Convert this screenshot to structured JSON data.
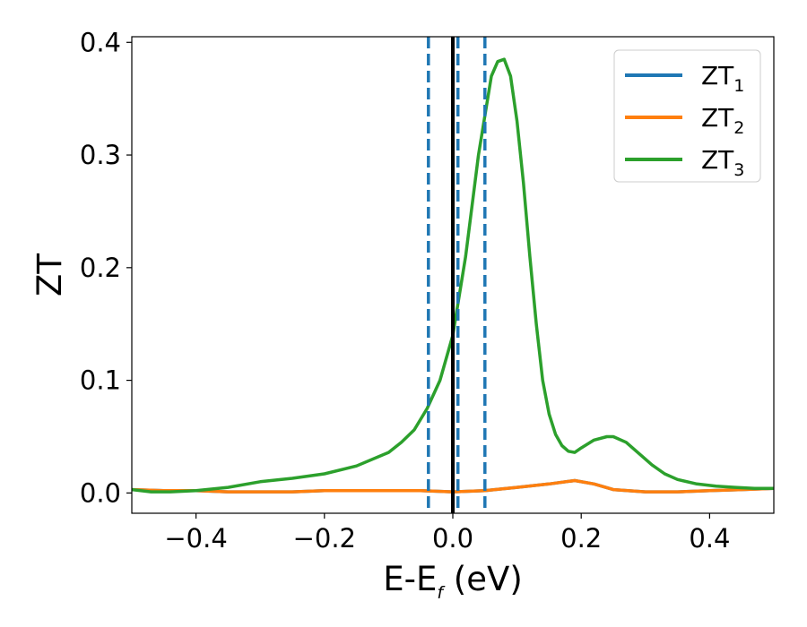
{
  "chart_data": {
    "type": "line",
    "xlabel": {
      "main": "E-E",
      "sub": "f",
      "suffix": " (eV)"
    },
    "ylabel": "ZT",
    "xlim": [
      -0.5,
      0.5
    ],
    "ylim": [
      -0.018,
      0.405
    ],
    "xticks": [
      {
        "value": -0.4,
        "label": "−0.4"
      },
      {
        "value": -0.2,
        "label": "−0.2"
      },
      {
        "value": 0.0,
        "label": "0.0"
      },
      {
        "value": 0.2,
        "label": "0.2"
      },
      {
        "value": 0.4,
        "label": "0.4"
      }
    ],
    "yticks": [
      {
        "value": 0.0,
        "label": "0.0"
      },
      {
        "value": 0.1,
        "label": "0.1"
      },
      {
        "value": 0.2,
        "label": "0.2"
      },
      {
        "value": 0.3,
        "label": "0.3"
      },
      {
        "value": 0.4,
        "label": "0.4"
      }
    ],
    "grid": false,
    "legend_position": "top-right",
    "series": [
      {
        "name": "ZT",
        "name_sub": "1",
        "color": "#1f77b4",
        "x": [
          -0.5,
          -0.45,
          -0.4,
          -0.35,
          -0.3,
          -0.25,
          -0.2,
          -0.15,
          -0.1,
          -0.05,
          0.0,
          0.05,
          0.1,
          0.15,
          0.19,
          0.22,
          0.25,
          0.3,
          0.35,
          0.4,
          0.45,
          0.5
        ],
        "y": [
          0.003,
          0.002,
          0.002,
          0.001,
          0.001,
          0.001,
          0.002,
          0.002,
          0.002,
          0.002,
          0.001,
          0.002,
          0.005,
          0.008,
          0.011,
          0.008,
          0.003,
          0.001,
          0.001,
          0.002,
          0.003,
          0.004
        ]
      },
      {
        "name": "ZT",
        "name_sub": "2",
        "color": "#ff7f0e",
        "x": [
          -0.5,
          -0.45,
          -0.4,
          -0.35,
          -0.3,
          -0.25,
          -0.2,
          -0.15,
          -0.1,
          -0.05,
          0.0,
          0.05,
          0.1,
          0.15,
          0.19,
          0.22,
          0.25,
          0.3,
          0.35,
          0.4,
          0.45,
          0.5
        ],
        "y": [
          0.003,
          0.002,
          0.002,
          0.001,
          0.001,
          0.001,
          0.002,
          0.002,
          0.002,
          0.002,
          0.001,
          0.002,
          0.005,
          0.008,
          0.011,
          0.008,
          0.003,
          0.001,
          0.001,
          0.002,
          0.003,
          0.004
        ]
      },
      {
        "name": "ZT",
        "name_sub": "3",
        "color": "#2ca02c",
        "x": [
          -0.5,
          -0.47,
          -0.44,
          -0.4,
          -0.35,
          -0.3,
          -0.25,
          -0.2,
          -0.15,
          -0.1,
          -0.08,
          -0.06,
          -0.04,
          -0.02,
          0.0,
          0.02,
          0.04,
          0.06,
          0.07,
          0.08,
          0.09,
          0.1,
          0.11,
          0.12,
          0.13,
          0.14,
          0.15,
          0.16,
          0.17,
          0.18,
          0.19,
          0.2,
          0.22,
          0.24,
          0.25,
          0.27,
          0.29,
          0.31,
          0.33,
          0.35,
          0.38,
          0.41,
          0.44,
          0.47,
          0.5
        ],
        "y": [
          0.003,
          0.001,
          0.001,
          0.002,
          0.005,
          0.01,
          0.013,
          0.017,
          0.024,
          0.036,
          0.045,
          0.056,
          0.075,
          0.1,
          0.14,
          0.21,
          0.3,
          0.37,
          0.383,
          0.385,
          0.37,
          0.33,
          0.275,
          0.21,
          0.15,
          0.1,
          0.07,
          0.052,
          0.042,
          0.037,
          0.036,
          0.04,
          0.047,
          0.05,
          0.05,
          0.045,
          0.035,
          0.025,
          0.017,
          0.012,
          0.008,
          0.006,
          0.005,
          0.004,
          0.004
        ]
      }
    ],
    "reference_lines": [
      {
        "x": 0.0,
        "style": "solid",
        "color": "#000000"
      },
      {
        "x": -0.038,
        "style": "dashed",
        "color": "#1f77b4"
      },
      {
        "x": 0.008,
        "style": "dashed",
        "color": "#1f77b4"
      },
      {
        "x": 0.05,
        "style": "dashed",
        "color": "#1f77b4"
      }
    ]
  }
}
